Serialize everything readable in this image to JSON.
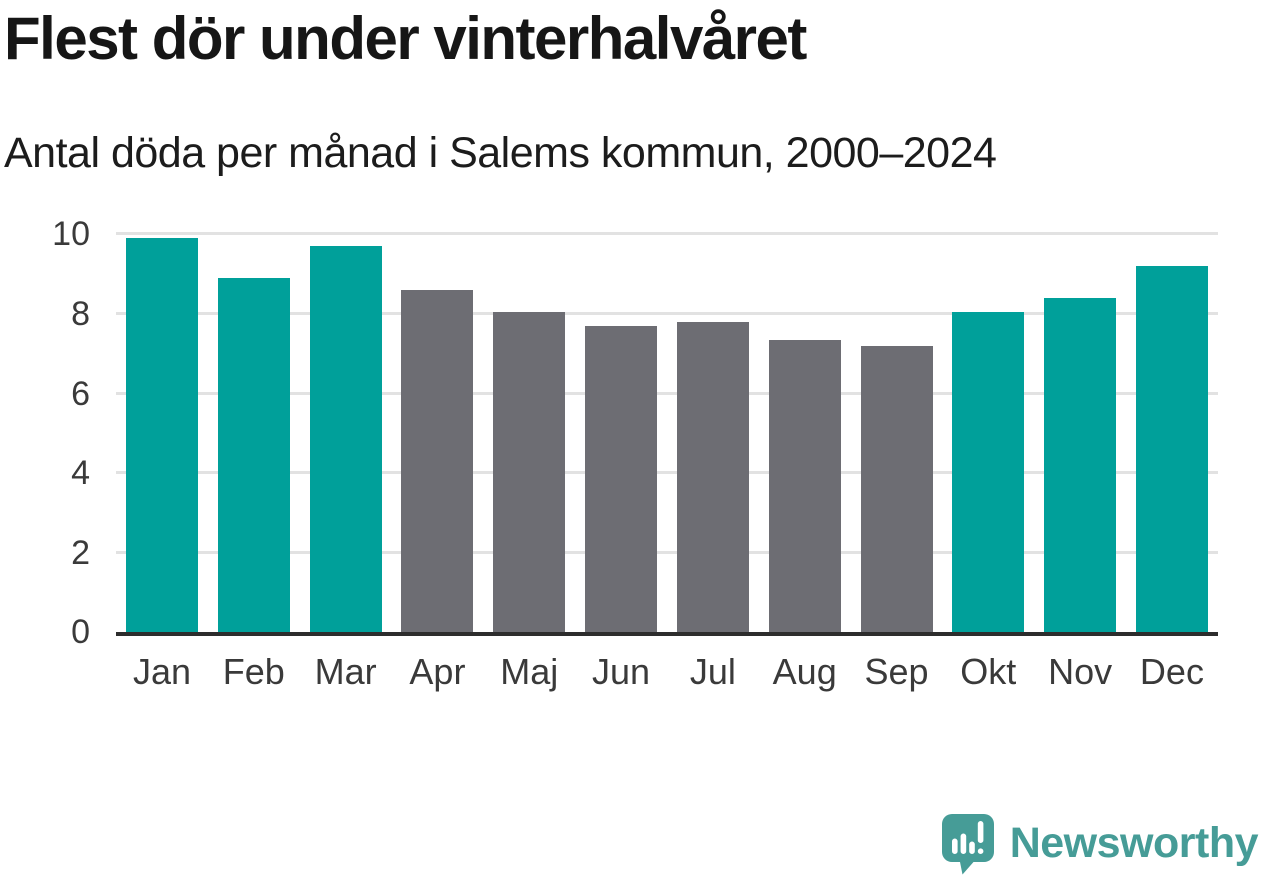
{
  "chart_data": {
    "type": "bar",
    "title": "Flest dör under vinterhalvåret",
    "subtitle": "Antal döda per månad i Salems kommun, 2000–2024",
    "categories": [
      "Jan",
      "Feb",
      "Mar",
      "Apr",
      "Maj",
      "Jun",
      "Jul",
      "Aug",
      "Sep",
      "Okt",
      "Nov",
      "Dec"
    ],
    "values": [
      9.9,
      8.9,
      9.7,
      8.6,
      8.05,
      7.7,
      7.8,
      7.35,
      7.2,
      8.05,
      8.4,
      9.2
    ],
    "groups": [
      "winter",
      "winter",
      "winter",
      "summer",
      "summer",
      "summer",
      "summer",
      "summer",
      "summer",
      "winter",
      "winter",
      "winter"
    ],
    "colors": {
      "winter": "#00A09A",
      "summer": "#6D6D73"
    },
    "xlabel": "",
    "ylabel": "",
    "ylim": [
      0,
      10
    ],
    "yticks": [
      0,
      2,
      4,
      6,
      8,
      10
    ],
    "grid": true,
    "legend": "none",
    "gridline_color": "#E2E2E2",
    "axis_line_color": "#2D2D2D",
    "tick_label_color": "#3A3A3A"
  },
  "footer": {
    "brand": "Newsworthy",
    "brand_color": "#469C97",
    "logo_icon": "newsworthy-speech-bubble-bar-chart-icon"
  }
}
